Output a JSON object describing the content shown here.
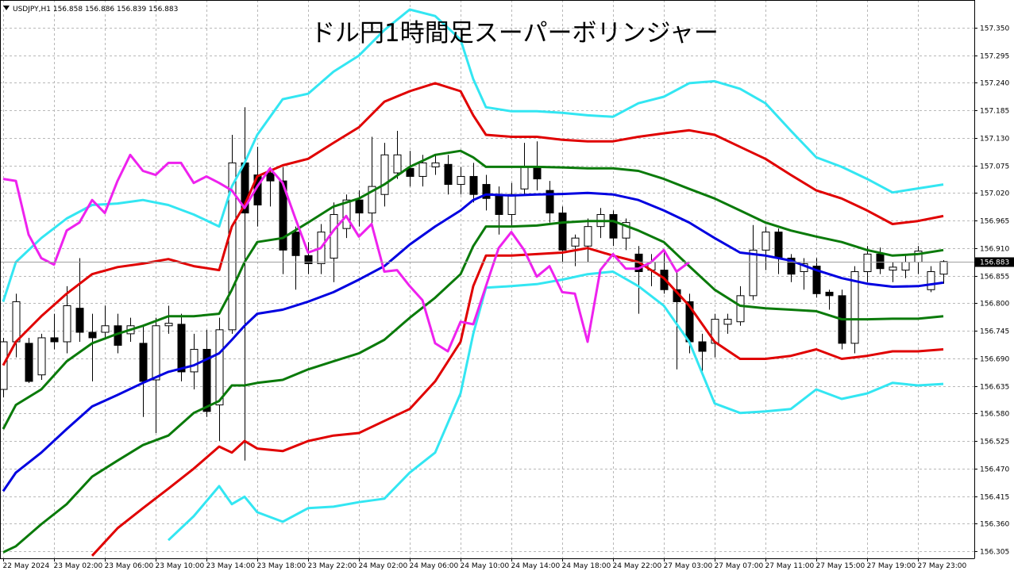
{
  "chart_data": {
    "type": "candlestick",
    "title": "ドル円1時間足スーパーボリンジャー",
    "symbol": "USDJPY,H1",
    "up_color": "#ffffff",
    "down_color": "#000000",
    "outline_color": "#000000",
    "grid": true,
    "xlim": [
      -0.25,
      76.44
    ],
    "ylim": [
      156.291,
      157.405
    ],
    "yticks": [
      {
        "value": 157.35,
        "label": "157.350"
      },
      157.295,
      {
        "value": 157.24,
        "label": "157.240"
      },
      157.185,
      {
        "value": 157.13,
        "label": "157.130"
      },
      157.075,
      {
        "value": 157.02,
        "label": "157.020"
      },
      156.965,
      {
        "value": 156.91,
        "label": "156.910"
      },
      156.855,
      {
        "value": 156.8,
        "label": "156.800"
      },
      156.745,
      {
        "value": 156.69,
        "label": "156.690"
      },
      156.635,
      {
        "value": 156.58,
        "label": "156.580"
      },
      156.525,
      {
        "value": 156.47,
        "label": "156.470"
      },
      156.415,
      {
        "value": 156.36,
        "label": "156.360"
      },
      156.305
    ],
    "xticks": [
      {
        "value": 0,
        "label": "22 May 2024"
      },
      {
        "value": 4,
        "label": "23 May 02:00"
      },
      {
        "value": 8,
        "label": "23 May 06:00"
      },
      {
        "value": 12,
        "label": "23 May 10:00"
      },
      {
        "value": 16,
        "label": "23 May 14:00"
      },
      {
        "value": 20,
        "label": "23 May 18:00"
      },
      {
        "value": 24,
        "label": "23 May 22:00"
      },
      {
        "value": 28,
        "label": "24 May 02:00"
      },
      {
        "value": 32,
        "label": "24 May 06:00"
      },
      {
        "value": 36,
        "label": "24 May 10:00"
      },
      {
        "value": 40,
        "label": "24 May 14:00"
      },
      {
        "value": 44,
        "label": "24 May 18:00"
      },
      {
        "value": 48,
        "label": "24 May 22:00"
      },
      {
        "value": 52,
        "label": "27 May 03:00"
      },
      {
        "value": 56,
        "label": "27 May 07:00"
      },
      {
        "value": 60,
        "label": "27 May 11:00"
      },
      {
        "value": 64,
        "label": "27 May 15:00"
      },
      {
        "value": 68,
        "label": "27 May 19:00"
      },
      {
        "value": 72,
        "label": "27 May 23:00"
      }
    ],
    "x": [
      0,
      1,
      2,
      3,
      4,
      5,
      6,
      7,
      8,
      9,
      10,
      11,
      12,
      13,
      14,
      15,
      16,
      17,
      18,
      19,
      20,
      21,
      22,
      23,
      24,
      25,
      26,
      27,
      28,
      29,
      30,
      31,
      32,
      33,
      34,
      35,
      36,
      37,
      38,
      39,
      40,
      41,
      42,
      43,
      44,
      45,
      46,
      47,
      48,
      49,
      50,
      51,
      52,
      53,
      54,
      55,
      56,
      57,
      58,
      59,
      60,
      61,
      62,
      63,
      64,
      65,
      66,
      67,
      68,
      69,
      70,
      71,
      72,
      73,
      74
    ],
    "open": [
      156.628,
      156.723,
      156.72,
      156.657,
      156.731,
      156.723,
      156.79,
      156.742,
      156.742,
      156.755,
      156.739,
      156.72,
      156.647,
      156.755,
      156.758,
      156.663,
      156.708,
      156.597,
      156.747,
      157.08,
      157.056,
      157.06,
      157.044,
      156.942,
      156.895,
      156.879,
      156.89,
      156.949,
      157.006,
      156.98,
      157.017,
      157.06,
      157.069,
      157.053,
      157.072,
      157.077,
      157.037,
      157.053,
      157.037,
      157.017,
      156.977,
      157.028,
      157.072,
      157.025,
      156.98,
      156.914,
      156.914,
      156.953,
      156.977,
      156.93,
      156.898,
      156.866,
      156.866,
      156.827,
      156.803,
      156.723,
      156.72,
      156.758,
      156.763,
      156.815,
      156.906,
      156.942,
      156.89,
      156.863,
      156.874,
      156.822,
      156.815,
      156.72,
      156.863,
      156.898,
      156.866,
      156.866,
      156.882,
      156.827,
      156.858
    ],
    "high": [
      156.731,
      156.819,
      156.731,
      156.739,
      156.779,
      156.834,
      156.89,
      156.779,
      156.795,
      156.779,
      156.771,
      156.755,
      156.771,
      156.795,
      156.779,
      156.739,
      156.747,
      156.771,
      157.136,
      157.191,
      157.112,
      157.072,
      157.072,
      156.953,
      156.922,
      156.958,
      157.001,
      157.017,
      157.025,
      157.132,
      157.12,
      157.144,
      157.104,
      157.096,
      157.096,
      157.096,
      157.072,
      157.08,
      157.056,
      157.033,
      157.04,
      157.12,
      157.123,
      157.044,
      156.993,
      156.937,
      156.969,
      156.99,
      156.985,
      156.969,
      156.914,
      156.898,
      156.906,
      156.866,
      156.819,
      156.739,
      156.779,
      156.779,
      156.834,
      156.956,
      156.953,
      156.949,
      156.898,
      156.89,
      156.89,
      156.827,
      156.827,
      156.874,
      156.914,
      156.911,
      156.882,
      156.898,
      156.914,
      156.874,
      156.886
    ],
    "low": [
      156.612,
      156.692,
      156.641,
      156.647,
      156.708,
      156.7,
      156.723,
      156.644,
      156.731,
      156.7,
      156.723,
      156.573,
      156.541,
      156.739,
      156.644,
      156.628,
      156.573,
      156.525,
      156.739,
      156.486,
      156.953,
      156.993,
      156.858,
      156.827,
      156.858,
      156.858,
      156.842,
      156.93,
      156.953,
      156.953,
      156.993,
      157.048,
      157.033,
      157.033,
      157.056,
      157.017,
      157.017,
      157.001,
      156.985,
      156.937,
      156.953,
      157.017,
      157.025,
      156.961,
      156.882,
      156.874,
      156.882,
      156.93,
      156.914,
      156.906,
      156.779,
      156.834,
      156.819,
      156.668,
      156.7,
      156.663,
      156.692,
      156.739,
      156.755,
      156.806,
      156.866,
      156.858,
      156.842,
      156.827,
      156.811,
      156.787,
      156.708,
      156.7,
      156.842,
      156.858,
      156.842,
      156.85,
      156.858,
      156.822,
      156.839
    ],
    "close": [
      156.723,
      156.803,
      156.644,
      156.731,
      156.723,
      156.795,
      156.742,
      156.731,
      156.755,
      156.716,
      156.755,
      156.644,
      156.755,
      156.76,
      156.663,
      156.708,
      156.584,
      156.747,
      157.08,
      156.98,
      156.996,
      157.044,
      156.906,
      156.895,
      156.879,
      156.942,
      156.977,
      157.006,
      156.98,
      157.033,
      157.096,
      157.096,
      157.053,
      157.08,
      157.08,
      157.037,
      157.053,
      157.017,
      157.009,
      156.977,
      157.017,
      157.072,
      157.048,
      156.98,
      156.906,
      156.93,
      156.953,
      156.977,
      156.93,
      156.961,
      156.863,
      156.882,
      156.827,
      156.803,
      156.723,
      156.704,
      156.768,
      156.768,
      156.815,
      156.906,
      156.942,
      156.89,
      156.858,
      156.879,
      156.819,
      156.815,
      156.72,
      156.863,
      156.898,
      156.869,
      156.872,
      156.882,
      156.904,
      156.863,
      156.883
    ],
    "series": [
      {
        "color": "#33e6f2",
        "x": [
          0,
          1,
          3,
          5,
          7,
          9,
          11,
          13,
          15,
          17,
          18,
          19,
          20,
          22,
          24,
          26,
          28,
          30,
          32,
          34,
          36,
          37,
          38,
          40,
          42,
          44,
          46,
          48,
          50,
          52,
          54,
          56,
          58,
          60,
          62,
          64,
          66,
          68,
          70,
          72,
          74
        ],
        "values": [
          156.803,
          156.882,
          156.93,
          156.969,
          156.996,
          156.999,
          157.006,
          156.996,
          156.977,
          156.953,
          157.033,
          157.08,
          157.136,
          157.207,
          157.218,
          157.262,
          157.294,
          157.345,
          157.386,
          157.373,
          157.326,
          157.247,
          157.191,
          157.183,
          157.183,
          157.18,
          157.175,
          157.172,
          157.199,
          157.212,
          157.239,
          157.243,
          157.228,
          157.199,
          157.144,
          157.091,
          157.072,
          157.048,
          157.021,
          157.029,
          157.037
        ]
      },
      {
        "color": "#e00000",
        "x": [
          0,
          1,
          3,
          5,
          7,
          9,
          11,
          13,
          15,
          17,
          18,
          19,
          20,
          22,
          24,
          26,
          28,
          30,
          32,
          34,
          36,
          37,
          38,
          40,
          42,
          44,
          46,
          48,
          50,
          52,
          54,
          56,
          58,
          60,
          62,
          64,
          66,
          68,
          70,
          72,
          74
        ],
        "values": [
          156.676,
          156.723,
          156.774,
          156.819,
          156.858,
          156.872,
          156.879,
          156.888,
          156.874,
          156.866,
          156.953,
          156.996,
          157.053,
          157.075,
          157.088,
          157.12,
          157.151,
          157.202,
          157.223,
          157.239,
          157.223,
          157.175,
          157.136,
          157.132,
          157.132,
          157.126,
          157.123,
          157.123,
          157.132,
          157.139,
          157.145,
          157.136,
          157.112,
          157.088,
          157.056,
          157.025,
          157.009,
          156.985,
          156.958,
          156.964,
          156.974
        ]
      },
      {
        "color": "#0a7a0a",
        "x": [
          0,
          1,
          3,
          5,
          7,
          9,
          11,
          13,
          15,
          17,
          18,
          19,
          20,
          22,
          24,
          26,
          28,
          30,
          32,
          34,
          36,
          37,
          38,
          40,
          42,
          44,
          46,
          48,
          50,
          52,
          54,
          56,
          58,
          60,
          62,
          64,
          66,
          68,
          70,
          72,
          74
        ],
        "values": [
          156.549,
          156.597,
          156.628,
          156.684,
          156.72,
          156.739,
          156.755,
          156.774,
          156.774,
          156.779,
          156.827,
          156.882,
          156.922,
          156.93,
          156.961,
          156.993,
          157.009,
          157.037,
          157.072,
          157.096,
          157.104,
          157.091,
          157.072,
          157.072,
          157.072,
          157.071,
          157.069,
          157.069,
          157.064,
          157.048,
          157.028,
          157.009,
          156.985,
          156.961,
          156.945,
          156.933,
          156.922,
          156.906,
          156.895,
          156.898,
          156.906
        ]
      },
      {
        "color": "#0000e0",
        "x": [
          0,
          1,
          3,
          5,
          7,
          9,
          11,
          13,
          15,
          17,
          18,
          19,
          20,
          22,
          24,
          26,
          28,
          30,
          32,
          34,
          36,
          37,
          38,
          40,
          42,
          44,
          46,
          48,
          50,
          52,
          54,
          56,
          58,
          60,
          62,
          64,
          66,
          68,
          70,
          72,
          74
        ],
        "values": [
          156.425,
          156.462,
          156.502,
          156.549,
          156.594,
          156.617,
          156.641,
          156.663,
          156.676,
          156.7,
          156.727,
          156.755,
          156.779,
          156.787,
          156.803,
          156.822,
          156.847,
          156.874,
          156.917,
          156.953,
          156.985,
          157.006,
          157.017,
          157.015,
          157.017,
          157.018,
          157.02,
          157.017,
          157.006,
          156.985,
          156.961,
          156.93,
          156.901,
          156.895,
          156.885,
          156.866,
          156.85,
          156.839,
          156.833,
          156.834,
          156.841
        ]
      },
      {
        "color": "#0a7a0a",
        "x": [
          0,
          1,
          3,
          5,
          7,
          9,
          11,
          13,
          15,
          17,
          18,
          19,
          20,
          22,
          24,
          26,
          28,
          30,
          32,
          34,
          36,
          37,
          38,
          40,
          42,
          44,
          46,
          48,
          50,
          52,
          54,
          56,
          58,
          60,
          62,
          64,
          66,
          68,
          70,
          72,
          74
        ],
        "values": [
          156.303,
          156.315,
          156.359,
          156.399,
          156.454,
          156.486,
          156.517,
          156.536,
          156.581,
          156.605,
          156.636,
          156.636,
          156.641,
          156.647,
          156.668,
          156.684,
          156.7,
          156.727,
          156.771,
          156.811,
          156.858,
          156.914,
          156.953,
          156.953,
          156.955,
          156.961,
          156.964,
          156.964,
          156.945,
          156.922,
          156.874,
          156.827,
          156.795,
          156.79,
          156.787,
          156.784,
          156.768,
          156.768,
          156.769,
          156.769,
          156.774
        ]
      },
      {
        "color": "#e00000",
        "x": [
          0,
          1,
          3,
          5,
          7,
          9,
          11,
          13,
          15,
          17,
          18,
          19,
          20,
          22,
          24,
          26,
          28,
          30,
          32,
          34,
          36,
          37,
          38,
          40,
          42,
          44,
          46,
          48,
          50,
          52,
          54,
          56,
          58,
          60,
          62,
          64,
          66,
          68,
          70,
          72,
          74
        ],
        "values": [
          null,
          null,
          null,
          null,
          156.296,
          156.351,
          156.391,
          156.43,
          156.47,
          156.514,
          156.502,
          156.525,
          156.51,
          156.505,
          156.525,
          156.536,
          156.541,
          156.565,
          156.589,
          156.644,
          156.723,
          156.834,
          156.895,
          156.895,
          156.898,
          156.901,
          156.91,
          156.895,
          156.882,
          156.85,
          156.795,
          156.723,
          156.689,
          156.689,
          156.695,
          156.708,
          156.689,
          156.695,
          156.704,
          156.704,
          156.708
        ]
      },
      {
        "color": "#33e6f2",
        "x": [
          0,
          1,
          3,
          5,
          7,
          9,
          11,
          13,
          15,
          17,
          18,
          19,
          20,
          22,
          24,
          26,
          28,
          30,
          32,
          34,
          36,
          37,
          38,
          40,
          42,
          44,
          46,
          48,
          50,
          52,
          54,
          56,
          58,
          60,
          62,
          64,
          66,
          68,
          70,
          72,
          74
        ],
        "values": [
          null,
          null,
          null,
          null,
          null,
          null,
          null,
          156.327,
          156.375,
          156.435,
          156.399,
          156.414,
          156.383,
          156.364,
          156.391,
          156.394,
          156.403,
          156.41,
          156.462,
          156.502,
          156.62,
          156.739,
          156.831,
          156.834,
          156.838,
          156.847,
          156.858,
          156.863,
          156.834,
          156.795,
          156.723,
          156.6,
          156.581,
          156.584,
          156.589,
          156.628,
          156.609,
          156.62,
          156.641,
          156.636,
          156.639
        ]
      },
      {
        "color": "#ee22ee",
        "x": [
          0,
          1,
          2,
          3,
          4,
          5,
          6,
          7,
          8,
          9,
          10,
          11,
          12,
          13,
          14,
          15,
          16,
          17,
          18,
          19,
          20,
          21,
          22,
          23,
          24,
          25,
          26,
          27,
          28,
          29,
          30,
          31,
          32,
          33,
          34,
          35,
          36,
          37,
          38,
          39,
          40,
          41,
          42,
          43,
          44,
          45,
          46,
          47,
          48,
          49,
          50,
          51,
          52,
          53,
          54
        ],
        "values": [
          157.048,
          157.044,
          156.937,
          156.89,
          156.877,
          156.945,
          156.961,
          157.006,
          156.98,
          157.044,
          157.096,
          157.064,
          157.056,
          157.08,
          157.08,
          157.04,
          157.053,
          157.04,
          157.025,
          156.99,
          157.033,
          157.069,
          157.04,
          156.969,
          156.901,
          156.91,
          156.945,
          156.974,
          156.933,
          156.958,
          156.863,
          156.866,
          156.834,
          156.806,
          156.72,
          156.704,
          156.763,
          156.758,
          156.834,
          156.91,
          156.942,
          156.906,
          156.853,
          156.874,
          156.822,
          156.819,
          156.723,
          156.866,
          156.898,
          156.869,
          156.869,
          156.882,
          156.906,
          156.863,
          156.882
        ]
      }
    ]
  }
}
